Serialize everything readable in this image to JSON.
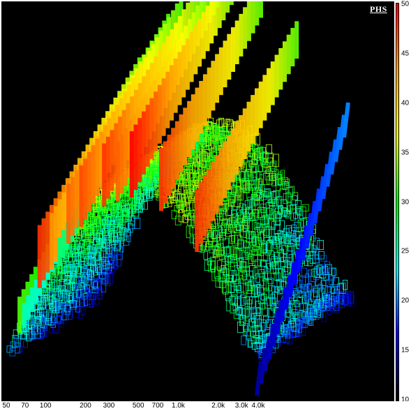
{
  "chart_data": {
    "type": "waterfall-3d",
    "logo": "PHS",
    "x_scale": "log",
    "x_ticks": [
      "50",
      "70",
      "100",
      "200",
      "300",
      "500",
      "700",
      "1.0k",
      "2.0k",
      "3.0k",
      "4.0k"
    ],
    "x_tick_values": [
      50,
      70,
      100,
      200,
      300,
      500,
      700,
      1000,
      2000,
      3000,
      4000
    ],
    "x_range": [
      50,
      4000
    ],
    "colorbar_ticks": [
      50,
      45,
      40,
      35,
      30,
      25,
      20,
      15,
      10
    ],
    "colorbar_range": [
      10,
      50
    ],
    "colorbar_colors": [
      "#ff0000",
      "#ffa500",
      "#ffff00",
      "#00ff00",
      "#00ffff",
      "#0000ff",
      "#000000"
    ],
    "background_color": "#000000",
    "ridges": [
      {
        "freq": 60,
        "peak": 32
      },
      {
        "freq": 65,
        "peak": 25
      },
      {
        "freq": 85,
        "peak": 48
      },
      {
        "freq": 105,
        "peak": 44
      },
      {
        "freq": 120,
        "peak": 27
      },
      {
        "freq": 140,
        "peak": 46
      },
      {
        "freq": 175,
        "peak": 47
      },
      {
        "freq": 260,
        "peak": 48
      },
      {
        "freq": 330,
        "peak": 46
      },
      {
        "freq": 420,
        "peak": 50
      },
      {
        "freq": 700,
        "peak": 48
      },
      {
        "freq": 1300,
        "peak": 48
      }
    ]
  }
}
